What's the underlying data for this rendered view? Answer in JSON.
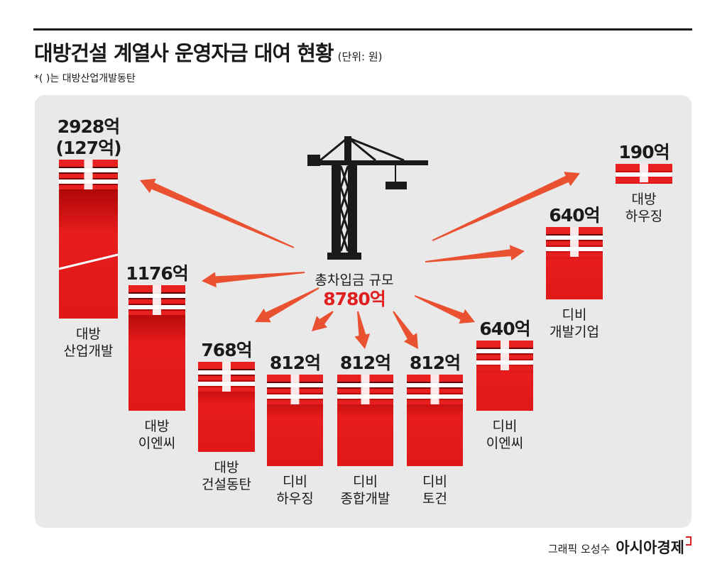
{
  "title": "대방건설 계열사 운영자금 대여 현황",
  "unit": "(단위: 원)",
  "note": "*( )는 대방산업개발동탄",
  "center": {
    "label": "총차입금 규모",
    "value": "8780억"
  },
  "credit": {
    "author": "그래픽 오성수",
    "brand": "아시아경제"
  },
  "colors": {
    "accent": "#e02020",
    "dark": "#1a1a1a",
    "panel": "#e9e9e9"
  },
  "chart_data": {
    "type": "bar",
    "title": "대방건설 계열사 운영자금 대여 현황",
    "unit": "억원",
    "total": 8780,
    "items": [
      {
        "label_lines": [
          "대방",
          "산업개발"
        ],
        "value": 2928,
        "value_text": "2928억",
        "sub_value": 127,
        "sub_text": "(127억)"
      },
      {
        "label_lines": [
          "대방",
          "이엔씨"
        ],
        "value": 1176,
        "value_text": "1176억"
      },
      {
        "label_lines": [
          "대방",
          "건설동탄"
        ],
        "value": 768,
        "value_text": "768억"
      },
      {
        "label_lines": [
          "디비",
          "하우징"
        ],
        "value": 812,
        "value_text": "812억"
      },
      {
        "label_lines": [
          "디비",
          "종합개발"
        ],
        "value": 812,
        "value_text": "812억"
      },
      {
        "label_lines": [
          "디비",
          "토건"
        ],
        "value": 812,
        "value_text": "812억"
      },
      {
        "label_lines": [
          "디비",
          "이엔씨"
        ],
        "value": 640,
        "value_text": "640억"
      },
      {
        "label_lines": [
          "디비",
          "개발기업"
        ],
        "value": 640,
        "value_text": "640억"
      },
      {
        "label_lines": [
          "대방",
          "하우징"
        ],
        "value": 190,
        "value_text": "190억"
      }
    ]
  }
}
